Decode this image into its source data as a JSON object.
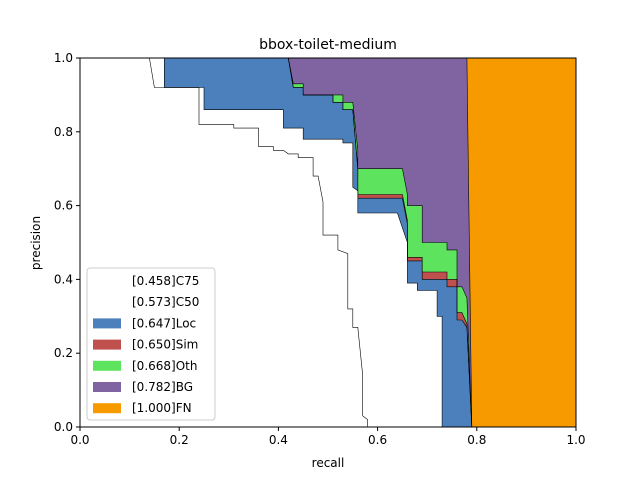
{
  "chart_data": {
    "type": "area",
    "title": "bbox-toilet-medium",
    "xlabel": "recall",
    "ylabel": "precision",
    "xlim": [
      0,
      1
    ],
    "ylim": [
      0,
      1
    ],
    "x_ticks": [
      "0.0",
      "0.2",
      "0.4",
      "0.6",
      "0.8",
      "1.0"
    ],
    "y_ticks": [
      "0.0",
      "0.2",
      "0.4",
      "0.6",
      "0.8",
      "1.0"
    ],
    "legend_position": "lower-left",
    "series": [
      {
        "name": "[0.458]C75",
        "color": "#ffffff",
        "points": [
          [
            0,
            1
          ],
          [
            0.14,
            1
          ],
          [
            0.15,
            0.92
          ],
          [
            0.24,
            0.92
          ],
          [
            0.24,
            0.82
          ],
          [
            0.31,
            0.82
          ],
          [
            0.31,
            0.81
          ],
          [
            0.36,
            0.81
          ],
          [
            0.36,
            0.76
          ],
          [
            0.39,
            0.76
          ],
          [
            0.39,
            0.75
          ],
          [
            0.41,
            0.75
          ],
          [
            0.42,
            0.74
          ],
          [
            0.44,
            0.74
          ],
          [
            0.44,
            0.73
          ],
          [
            0.47,
            0.73
          ],
          [
            0.47,
            0.68
          ],
          [
            0.48,
            0.68
          ],
          [
            0.49,
            0.61
          ],
          [
            0.49,
            0.52
          ],
          [
            0.52,
            0.52
          ],
          [
            0.52,
            0.48
          ],
          [
            0.54,
            0.47
          ],
          [
            0.54,
            0.32
          ],
          [
            0.55,
            0.32
          ],
          [
            0.55,
            0.27
          ],
          [
            0.56,
            0.27
          ],
          [
            0.57,
            0.14
          ],
          [
            0.57,
            0.03
          ],
          [
            0.58,
            0.02
          ],
          [
            0.58,
            0
          ]
        ]
      },
      {
        "name": "[0.573]C50",
        "color": "#ffffff",
        "points": [
          [
            0,
            1
          ],
          [
            0.17,
            1
          ],
          [
            0.17,
            0.92
          ],
          [
            0.25,
            0.92
          ],
          [
            0.25,
            0.86
          ],
          [
            0.41,
            0.86
          ],
          [
            0.41,
            0.81
          ],
          [
            0.45,
            0.81
          ],
          [
            0.45,
            0.78
          ],
          [
            0.53,
            0.78
          ],
          [
            0.53,
            0.77
          ],
          [
            0.55,
            0.77
          ],
          [
            0.55,
            0.65
          ],
          [
            0.56,
            0.64
          ],
          [
            0.56,
            0.58
          ],
          [
            0.56,
            0.58
          ],
          [
            0.64,
            0.58
          ],
          [
            0.66,
            0.5
          ],
          [
            0.66,
            0.39
          ],
          [
            0.68,
            0.39
          ],
          [
            0.68,
            0.37
          ],
          [
            0.72,
            0.37
          ],
          [
            0.72,
            0.3
          ],
          [
            0.73,
            0.3
          ],
          [
            0.73,
            0
          ]
        ]
      },
      {
        "name": "[0.647]Loc",
        "color": "#4c80bd",
        "points": [
          [
            0,
            1
          ],
          [
            0.42,
            1
          ],
          [
            0.43,
            0.92
          ],
          [
            0.45,
            0.92
          ],
          [
            0.45,
            0.9
          ],
          [
            0.51,
            0.9
          ],
          [
            0.51,
            0.88
          ],
          [
            0.53,
            0.88
          ],
          [
            0.53,
            0.86
          ],
          [
            0.55,
            0.86
          ],
          [
            0.56,
            0.7
          ],
          [
            0.56,
            0.62
          ],
          [
            0.65,
            0.62
          ],
          [
            0.66,
            0.55
          ],
          [
            0.66,
            0.45
          ],
          [
            0.69,
            0.45
          ],
          [
            0.69,
            0.4
          ],
          [
            0.74,
            0.4
          ],
          [
            0.74,
            0.38
          ],
          [
            0.76,
            0.38
          ],
          [
            0.76,
            0.29
          ],
          [
            0.77,
            0.29
          ],
          [
            0.78,
            0.27
          ],
          [
            0.79,
            0
          ]
        ]
      },
      {
        "name": "[0.650]Sim",
        "color": "#c0504d",
        "points": [
          [
            0,
            1
          ],
          [
            0.42,
            1
          ],
          [
            0.43,
            0.92
          ],
          [
            0.45,
            0.92
          ],
          [
            0.45,
            0.9
          ],
          [
            0.51,
            0.9
          ],
          [
            0.51,
            0.88
          ],
          [
            0.53,
            0.88
          ],
          [
            0.53,
            0.86
          ],
          [
            0.55,
            0.86
          ],
          [
            0.56,
            0.7
          ],
          [
            0.56,
            0.63
          ],
          [
            0.65,
            0.63
          ],
          [
            0.66,
            0.56
          ],
          [
            0.66,
            0.46
          ],
          [
            0.69,
            0.46
          ],
          [
            0.69,
            0.42
          ],
          [
            0.74,
            0.42
          ],
          [
            0.74,
            0.4
          ],
          [
            0.76,
            0.4
          ],
          [
            0.76,
            0.31
          ],
          [
            0.77,
            0.31
          ],
          [
            0.78,
            0.28
          ],
          [
            0.79,
            0
          ]
        ]
      },
      {
        "name": "[0.668]Oth",
        "color": "#5ee35e",
        "points": [
          [
            0,
            1
          ],
          [
            0.42,
            1
          ],
          [
            0.43,
            0.93
          ],
          [
            0.45,
            0.93
          ],
          [
            0.45,
            0.9
          ],
          [
            0.51,
            0.9
          ],
          [
            0.51,
            0.9
          ],
          [
            0.53,
            0.9
          ],
          [
            0.53,
            0.88
          ],
          [
            0.55,
            0.88
          ],
          [
            0.56,
            0.75
          ],
          [
            0.56,
            0.7
          ],
          [
            0.65,
            0.7
          ],
          [
            0.66,
            0.63
          ],
          [
            0.66,
            0.6
          ],
          [
            0.69,
            0.6
          ],
          [
            0.69,
            0.5
          ],
          [
            0.74,
            0.5
          ],
          [
            0.74,
            0.48
          ],
          [
            0.76,
            0.48
          ],
          [
            0.76,
            0.38
          ],
          [
            0.77,
            0.38
          ],
          [
            0.78,
            0.35
          ],
          [
            0.79,
            0
          ]
        ]
      },
      {
        "name": "[0.782]BG",
        "color": "#8064a2",
        "points": [
          [
            0,
            1
          ],
          [
            0.78,
            1
          ],
          [
            0.79,
            0
          ]
        ]
      },
      {
        "name": "[1.000]FN",
        "color": "#f79a00",
        "points": [
          [
            0,
            1
          ],
          [
            1,
            1
          ],
          [
            1,
            0
          ]
        ]
      }
    ]
  }
}
